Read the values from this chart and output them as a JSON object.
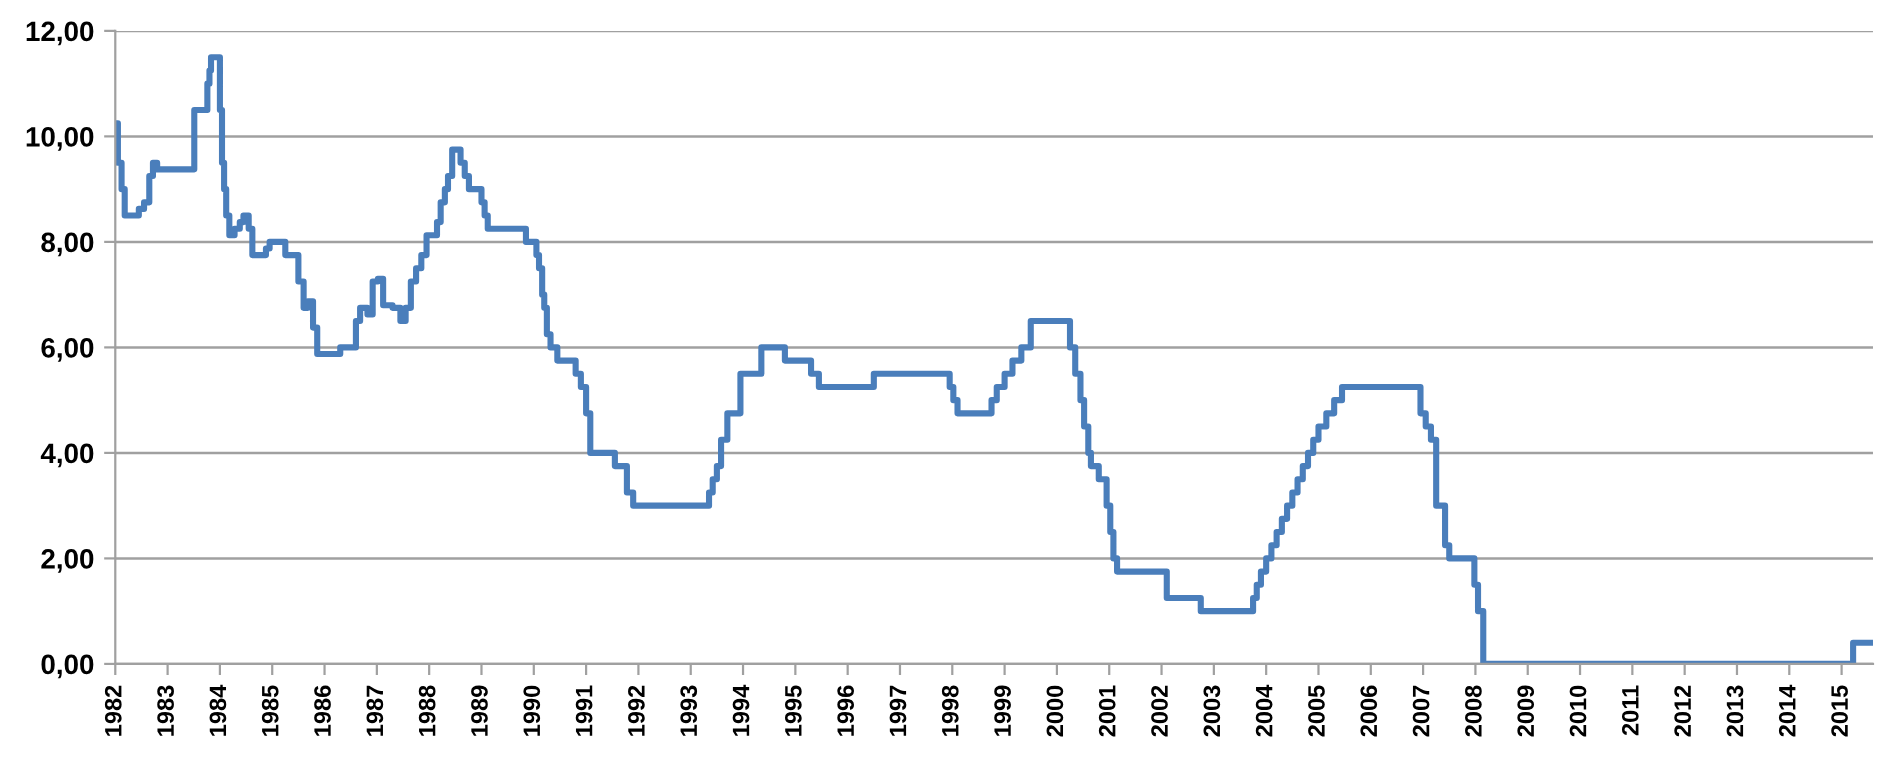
{
  "chart_data": {
    "type": "step",
    "color": "#4a7ebb",
    "grid": "y",
    "legend": false,
    "marker": "none",
    "line_style": "solid",
    "x": [
      1982.0,
      1982.05,
      1982.12,
      1982.18,
      1982.45,
      1982.55,
      1982.65,
      1982.72,
      1982.8,
      1982.88,
      1982.93,
      1983.51,
      1983.76,
      1983.8,
      1983.83,
      1984.0,
      1984.04,
      1984.08,
      1984.12,
      1984.18,
      1984.28,
      1984.38,
      1984.45,
      1984.55,
      1984.62,
      1984.88,
      1984.95,
      1985.25,
      1985.5,
      1985.6,
      1985.68,
      1985.78,
      1985.86,
      1986.3,
      1986.6,
      1986.68,
      1986.82,
      1986.92,
      1987.02,
      1987.12,
      1987.3,
      1987.45,
      1987.55,
      1987.65,
      1987.75,
      1987.85,
      1987.95,
      1988.15,
      1988.22,
      1988.3,
      1988.36,
      1988.44,
      1988.6,
      1988.68,
      1988.76,
      1988.85,
      1989.0,
      1989.06,
      1989.12,
      1989.85,
      1990.05,
      1990.1,
      1990.16,
      1990.2,
      1990.25,
      1990.32,
      1990.45,
      1990.7,
      1990.8,
      1990.9,
      1991.0,
      1991.08,
      1991.55,
      1991.78,
      1991.9,
      1993.35,
      1993.42,
      1993.5,
      1993.58,
      1993.7,
      1993.95,
      1994.35,
      1994.8,
      1995.3,
      1995.45,
      1996.5,
      1997.95,
      1998.02,
      1998.1,
      1998.75,
      1998.85,
      1999.0,
      1999.15,
      1999.32,
      1999.5,
      1999.65,
      2000.25,
      2000.35,
      2000.45,
      2000.52,
      2000.6,
      2000.65,
      2000.8,
      2000.95,
      2001.02,
      2001.08,
      2001.15,
      2001.22,
      2002.1,
      2002.75,
      2003.75,
      2003.82,
      2003.9,
      2004.0,
      2004.1,
      2004.2,
      2004.3,
      2004.4,
      2004.5,
      2004.6,
      2004.7,
      2004.8,
      2004.9,
      2005.0,
      2005.15,
      2005.3,
      2005.45,
      2005.6,
      2006.95,
      2007.05,
      2007.15,
      2007.25,
      2007.42,
      2007.5,
      2007.98,
      2008.05,
      2008.15,
      2008.22,
      2015.22,
      2015.6
    ],
    "values": [
      10.25,
      9.5,
      9.0,
      8.5,
      8.625,
      8.75,
      9.25,
      9.5,
      9.375,
      9.375,
      9.375,
      10.5,
      11.0,
      11.25,
      11.5,
      10.5,
      9.5,
      9.0,
      8.5,
      8.125,
      8.25,
      8.375,
      8.5,
      8.25,
      7.75,
      7.875,
      8.0,
      7.75,
      7.25,
      6.75,
      6.875,
      6.375,
      5.875,
      6.0,
      6.5,
      6.75,
      6.625,
      7.25,
      7.3,
      6.8,
      6.75,
      6.5,
      6.75,
      7.25,
      7.5,
      7.75,
      8.125,
      8.375,
      8.75,
      9.0,
      9.25,
      9.75,
      9.5,
      9.25,
      9.0,
      9.0,
      8.75,
      8.5,
      8.25,
      8.0,
      7.75,
      7.5,
      7.0,
      6.75,
      6.25,
      6.0,
      5.75,
      5.75,
      5.5,
      5.25,
      4.75,
      4.0,
      3.75,
      3.25,
      3.0,
      3.25,
      3.5,
      3.75,
      4.25,
      4.75,
      5.5,
      6.0,
      5.75,
      5.5,
      5.25,
      5.5,
      5.25,
      5.0,
      4.75,
      5.0,
      5.25,
      5.5,
      5.75,
      6.0,
      6.5,
      6.5,
      6.0,
      5.5,
      5.0,
      4.5,
      4.0,
      3.75,
      3.5,
      3.0,
      2.5,
      2.0,
      1.75,
      1.75,
      1.25,
      1.0,
      1.25,
      1.5,
      1.75,
      2.0,
      2.25,
      2.5,
      2.75,
      3.0,
      3.25,
      3.5,
      3.75,
      4.0,
      4.25,
      4.5,
      4.75,
      5.0,
      5.25,
      5.25,
      4.75,
      4.5,
      4.25,
      3.0,
      2.25,
      2.0,
      1.5,
      1.0,
      0.0,
      0.0,
      0.4,
      0.4
    ],
    "xlim": [
      1982,
      2015.6
    ],
    "xticks": [
      1982,
      1983,
      1984,
      1985,
      1986,
      1987,
      1988,
      1989,
      1990,
      1991,
      1992,
      1993,
      1994,
      1995,
      1996,
      1997,
      1998,
      1999,
      2000,
      2001,
      2002,
      2003,
      2004,
      2005,
      2006,
      2007,
      2008,
      2009,
      2010,
      2011,
      2012,
      2013,
      2014,
      2015
    ],
    "ylim": [
      0,
      12
    ],
    "yticks": [
      {
        "value": 0,
        "label": "0,00"
      },
      {
        "value": 2,
        "label": "2,00"
      },
      {
        "value": 4,
        "label": "4,00"
      },
      {
        "value": 6,
        "label": "6,00"
      },
      {
        "value": 8,
        "label": "8,00"
      },
      {
        "value": 10,
        "label": "10,00"
      },
      {
        "value": 12,
        "label": "12,00"
      }
    ]
  }
}
